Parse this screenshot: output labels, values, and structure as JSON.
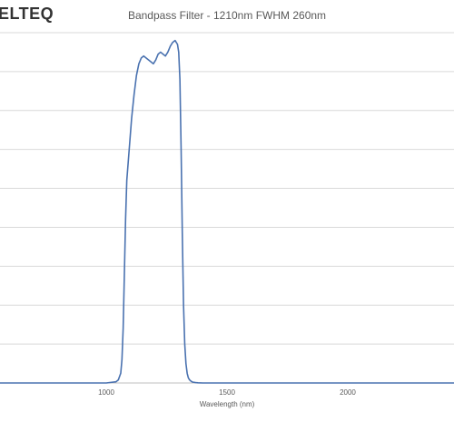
{
  "logo": {
    "text": "ELTEQ"
  },
  "chart_data": {
    "type": "line",
    "title": "Bandpass Filter - 1210nm FWHM 260nm",
    "xlabel": "Wavelength (nm)",
    "ylabel": "",
    "xlim": [
      560,
      2440
    ],
    "ylim": [
      0,
      90
    ],
    "x_ticks": [
      1000,
      1500,
      2000
    ],
    "x_tick_labels": [
      "1000",
      "1500",
      "2000"
    ],
    "grid": true,
    "legend": "none",
    "line_color": "#4a72b0",
    "series": [
      {
        "x": [
          560,
          900,
          1000,
          1040,
          1050,
          1060,
          1065,
          1070,
          1075,
          1080,
          1085,
          1095,
          1105,
          1115,
          1125,
          1135,
          1145,
          1155,
          1165,
          1175,
          1185,
          1195,
          1205,
          1215,
          1225,
          1235,
          1245,
          1255,
          1265,
          1275,
          1285,
          1295,
          1300,
          1305,
          1310,
          1315,
          1320,
          1325,
          1330,
          1335,
          1340,
          1345,
          1350,
          1355,
          1360,
          1370,
          1380,
          1400,
          1450,
          1500,
          1600,
          2440
        ],
        "y": [
          0,
          0,
          0,
          0.3,
          0.8,
          2.5,
          6,
          14,
          28,
          42,
          52,
          60,
          68,
          74,
          79,
          82,
          83.5,
          84,
          83.5,
          83,
          82.5,
          82,
          83,
          84.5,
          85,
          84.5,
          84,
          85,
          86.5,
          87.5,
          88,
          87,
          85,
          78,
          60,
          38,
          20,
          10,
          5,
          2.5,
          1.3,
          0.8,
          0.5,
          0.3,
          0.2,
          0.1,
          0.05,
          0,
          0,
          0,
          0,
          0
        ]
      }
    ]
  }
}
